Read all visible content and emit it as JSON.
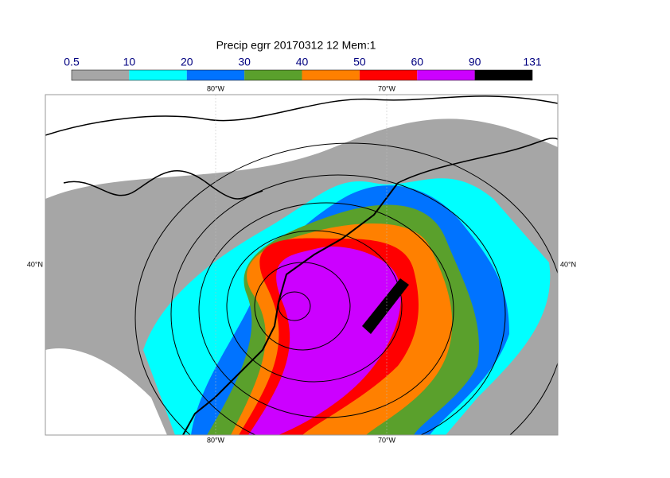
{
  "title": "Precip egrr 20170312 12 Mem:1",
  "colorbar": {
    "levels": [
      0.5,
      10,
      20,
      30,
      40,
      50,
      60,
      90,
      131
    ],
    "colors": [
      "#a6a6a6",
      "#00ffff",
      "#0073ff",
      "#5aa02c",
      "#ff8000",
      "#ff0000",
      "#cc00ff",
      "#000000"
    ]
  },
  "lon_labels": [
    "80°W",
    "70°W"
  ],
  "lat_labels": [
    "40°N"
  ]
}
